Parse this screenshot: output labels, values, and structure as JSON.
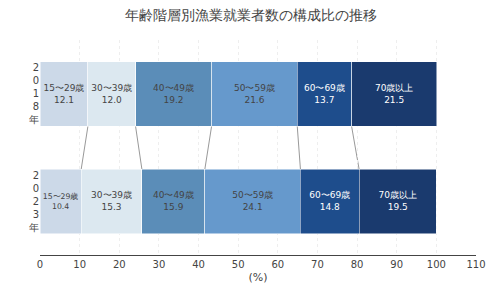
{
  "chart_data": {
    "type": "bar",
    "title": "年齢階層別漁業就業者数の構成比の推移",
    "xlabel": "(%)",
    "orientation": "horizontal",
    "stacked": true,
    "data_labels": true,
    "grid": true,
    "categories": [
      "2\n0\n1\n8\n年",
      "2\n0\n2\n3\n年"
    ],
    "series": [
      {
        "name": "15〜29歳",
        "color": "#ccd9e8",
        "values": [
          12.1,
          10.4
        ],
        "value_labels": [
          "15〜29歳\n12.1",
          "15〜29歳\n10.4"
        ]
      },
      {
        "name": "30〜39歳",
        "color": "#dce8f0",
        "values": [
          12.0,
          15.3
        ],
        "value_labels": [
          "30〜39歳\n12.0",
          "30〜39歳\n15.3"
        ]
      },
      {
        "name": "40〜49歳",
        "color": "#5b8db8",
        "values": [
          19.2,
          15.9
        ],
        "value_labels": [
          "40〜49歳\n19.2",
          "40〜49歳\n15.9"
        ]
      },
      {
        "name": "50〜59歳",
        "color": "#6699cc",
        "values": [
          21.6,
          24.1
        ],
        "value_labels": [
          "50〜59歳\n21.6",
          "50〜59歳\n24.1"
        ]
      },
      {
        "name": "60〜69歳",
        "color": "#1e4d8c",
        "values": [
          13.7,
          14.8
        ],
        "value_labels": [
          "60〜69歳\n13.7",
          "60〜69歳\n14.8"
        ]
      },
      {
        "name": "70歳以上",
        "color": "#1a3a6e",
        "values": [
          21.5,
          19.5
        ],
        "value_labels": [
          "70歳以上\n21.5",
          "70歳以上\n19.5"
        ]
      }
    ],
    "xlim": [
      0,
      110
    ],
    "xticks": [
      0,
      10,
      20,
      30,
      40,
      50,
      60,
      70,
      80,
      90,
      100,
      110
    ]
  }
}
